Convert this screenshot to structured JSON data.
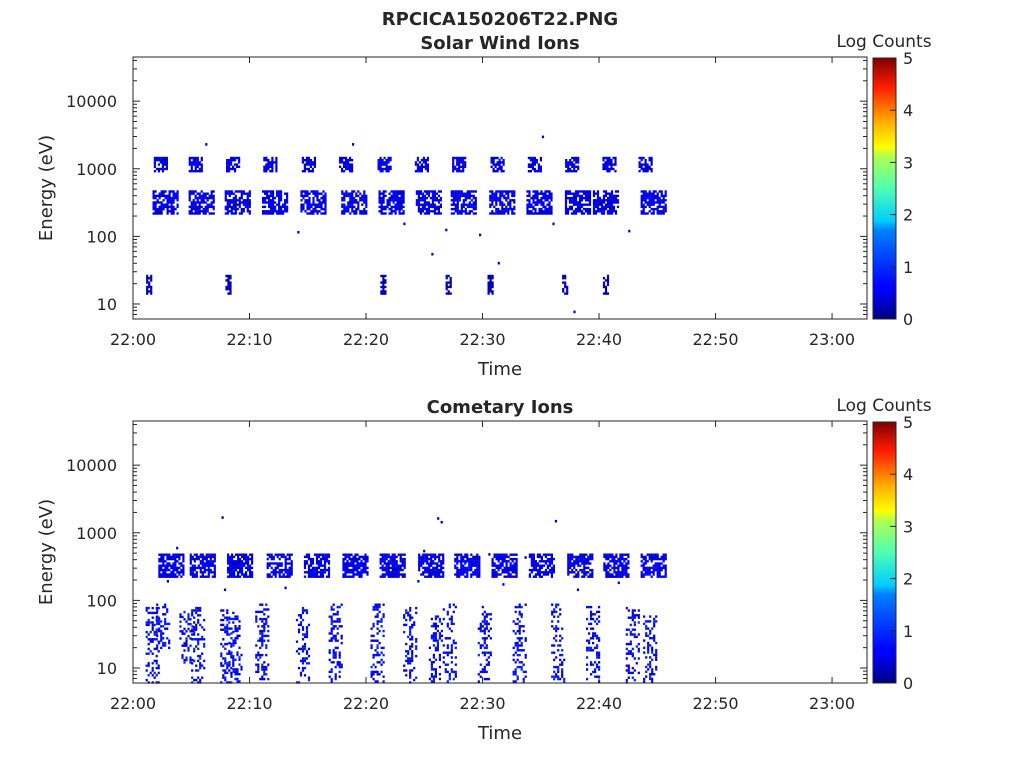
{
  "figure": {
    "title": "RPCICA150206T22.PNG"
  },
  "colormap": "jet",
  "chart_data": [
    {
      "type": "heatmap",
      "title": "Solar Wind Ions",
      "xlabel": "Time",
      "ylabel": "Energy (eV)",
      "x_scale": "time",
      "x_range": [
        "22:00",
        "23:03"
      ],
      "x_ticks": [
        "22:00",
        "22:10",
        "22:20",
        "22:30",
        "22:40",
        "22:50",
        "23:00"
      ],
      "y_scale": "log",
      "y_range": [
        6,
        45000
      ],
      "y_ticks": [
        "10",
        "100",
        "1000",
        "10000"
      ],
      "colorbar": {
        "label": "Log Counts",
        "range": [
          0,
          5
        ],
        "ticks": [
          "0",
          "1",
          "2",
          "3",
          "4",
          "5"
        ]
      },
      "data_extent": {
        "start": "22:01",
        "end": "22:44"
      },
      "bands": [
        {
          "energy_ev": 1200,
          "times_min": [
            2.3,
            5.3,
            8.5,
            11.7,
            15.0,
            18.2,
            21.5,
            24.7,
            27.9,
            31.2,
            34.4,
            37.6,
            40.8,
            43.9
          ],
          "log_counts": 0.5
        },
        {
          "energy_ev": 330,
          "times_min": [
            2.7,
            5.8,
            8.9,
            12.1,
            15.4,
            18.9,
            22.1,
            25.3,
            28.3,
            31.6,
            34.8,
            38.1,
            40.5,
            44.6
          ],
          "log_counts": 0.5
        },
        {
          "energy_ev": 20,
          "times_min": [
            1.3,
            8.1,
            21.4,
            27.0,
            30.6,
            37.0,
            40.5
          ],
          "log_counts": 0.3
        }
      ],
      "scatter": [
        {
          "t": 6.2,
          "e": 2400
        },
        {
          "t": 18.8,
          "e": 2400
        },
        {
          "t": 35.1,
          "e": 3100
        },
        {
          "t": 14.1,
          "e": 120
        },
        {
          "t": 25.6,
          "e": 57
        },
        {
          "t": 29.7,
          "e": 110
        },
        {
          "t": 31.3,
          "e": 42
        },
        {
          "t": 37.8,
          "e": 8
        },
        {
          "t": 42.5,
          "e": 125
        },
        {
          "t": 36.0,
          "e": 160
        },
        {
          "t": 23.2,
          "e": 160
        },
        {
          "t": 26.8,
          "e": 130
        }
      ]
    },
    {
      "type": "heatmap",
      "title": "Cometary Ions",
      "xlabel": "Time",
      "ylabel": "Energy (eV)",
      "x_scale": "time",
      "x_range": [
        "22:00",
        "23:03"
      ],
      "x_ticks": [
        "22:00",
        "22:10",
        "22:20",
        "22:30",
        "22:40",
        "22:50",
        "23:00"
      ],
      "y_scale": "log",
      "y_range": [
        6,
        45000
      ],
      "y_ticks": [
        "10",
        "100",
        "1000",
        "10000"
      ],
      "colorbar": {
        "label": "Log Counts",
        "range": [
          0,
          5
        ],
        "ticks": [
          "0",
          "1",
          "2",
          "3",
          "4",
          "5"
        ]
      },
      "data_extent": {
        "start": "22:01",
        "end": "22:44"
      },
      "bands": [
        {
          "energy_ev": 340,
          "times_min": [
            3.2,
            5.9,
            9.1,
            12.5,
            15.7,
            19.0,
            22.2,
            25.5,
            28.6,
            31.8,
            35.0,
            38.3,
            41.4,
            44.6
          ],
          "log_counts": 0.5
        }
      ],
      "columns": [
        {
          "t": 1.6,
          "e_top": 80,
          "e_bottom": 6
        },
        {
          "t": 2.5,
          "e_top": 90,
          "e_bottom": 20
        },
        {
          "t": 4.5,
          "e_top": 70,
          "e_bottom": 12
        },
        {
          "t": 5.5,
          "e_top": 80,
          "e_bottom": 6
        },
        {
          "t": 8.0,
          "e_top": 80,
          "e_bottom": 6
        },
        {
          "t": 8.7,
          "e_top": 60,
          "e_bottom": 6
        },
        {
          "t": 11.0,
          "e_top": 90,
          "e_bottom": 6
        },
        {
          "t": 14.5,
          "e_top": 80,
          "e_bottom": 6
        },
        {
          "t": 17.3,
          "e_top": 90,
          "e_bottom": 6
        },
        {
          "t": 20.9,
          "e_top": 90,
          "e_bottom": 6
        },
        {
          "t": 23.7,
          "e_top": 80,
          "e_bottom": 6
        },
        {
          "t": 25.9,
          "e_top": 60,
          "e_bottom": 6
        },
        {
          "t": 27.1,
          "e_top": 90,
          "e_bottom": 6
        },
        {
          "t": 30.1,
          "e_top": 90,
          "e_bottom": 6
        },
        {
          "t": 33.1,
          "e_top": 90,
          "e_bottom": 6
        },
        {
          "t": 36.4,
          "e_top": 90,
          "e_bottom": 6
        },
        {
          "t": 39.4,
          "e_top": 90,
          "e_bottom": 6
        },
        {
          "t": 42.8,
          "e_top": 80,
          "e_bottom": 6
        },
        {
          "t": 44.3,
          "e_top": 60,
          "e_bottom": 6
        }
      ],
      "scatter": [
        {
          "t": 7.6,
          "e": 1750
        },
        {
          "t": 26.1,
          "e": 1700
        },
        {
          "t": 26.4,
          "e": 1500
        },
        {
          "t": 36.2,
          "e": 1550
        },
        {
          "t": 3.7,
          "e": 620
        },
        {
          "t": 24.9,
          "e": 560
        },
        {
          "t": 30.5,
          "e": 500
        },
        {
          "t": 33.6,
          "e": 450
        },
        {
          "t": 2.9,
          "e": 200
        },
        {
          "t": 7.8,
          "e": 150
        },
        {
          "t": 13.0,
          "e": 160
        },
        {
          "t": 24.4,
          "e": 200
        },
        {
          "t": 31.7,
          "e": 180
        },
        {
          "t": 38.1,
          "e": 150
        },
        {
          "t": 41.6,
          "e": 190
        }
      ]
    }
  ]
}
